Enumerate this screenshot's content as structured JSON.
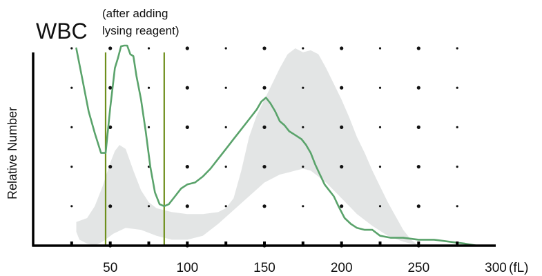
{
  "chart_data": {
    "type": "area",
    "title": "WBC",
    "annotation": [
      "(after adding",
      "lysing reagent)"
    ],
    "xlabel": "",
    "ylabel": "Relative Number",
    "x_unit": "(fL)",
    "xlim": [
      0,
      300
    ],
    "ylim": [
      0,
      100
    ],
    "x_ticks": [
      50,
      100,
      150,
      200,
      250,
      300
    ],
    "grid": "dots",
    "threshold_lines": [
      47,
      85
    ],
    "colors": {
      "curve": "#5aa36b",
      "band": "#e3e5e5",
      "threshold": "#6e8f1c",
      "axis": "#000000",
      "dot": "#111111"
    },
    "band_upper": [
      {
        "x": 28,
        "y": 12
      },
      {
        "x": 35,
        "y": 14
      },
      {
        "x": 40,
        "y": 20
      },
      {
        "x": 45,
        "y": 30
      },
      {
        "x": 50,
        "y": 42
      },
      {
        "x": 53,
        "y": 48
      },
      {
        "x": 56,
        "y": 51
      },
      {
        "x": 60,
        "y": 49
      },
      {
        "x": 65,
        "y": 38
      },
      {
        "x": 70,
        "y": 28
      },
      {
        "x": 75,
        "y": 22
      },
      {
        "x": 80,
        "y": 19
      },
      {
        "x": 90,
        "y": 17
      },
      {
        "x": 100,
        "y": 16
      },
      {
        "x": 110,
        "y": 16
      },
      {
        "x": 120,
        "y": 17
      },
      {
        "x": 125,
        "y": 19
      },
      {
        "x": 130,
        "y": 24
      },
      {
        "x": 135,
        "y": 38
      },
      {
        "x": 140,
        "y": 55
      },
      {
        "x": 145,
        "y": 66
      },
      {
        "x": 150,
        "y": 74
      },
      {
        "x": 155,
        "y": 82
      },
      {
        "x": 160,
        "y": 90
      },
      {
        "x": 165,
        "y": 97
      },
      {
        "x": 170,
        "y": 100
      },
      {
        "x": 175,
        "y": 98
      },
      {
        "x": 180,
        "y": 99
      },
      {
        "x": 185,
        "y": 97
      },
      {
        "x": 190,
        "y": 90
      },
      {
        "x": 195,
        "y": 82
      },
      {
        "x": 200,
        "y": 74
      },
      {
        "x": 205,
        "y": 65
      },
      {
        "x": 210,
        "y": 55
      },
      {
        "x": 215,
        "y": 47
      },
      {
        "x": 220,
        "y": 38
      },
      {
        "x": 225,
        "y": 30
      },
      {
        "x": 230,
        "y": 22
      },
      {
        "x": 235,
        "y": 15
      },
      {
        "x": 240,
        "y": 8
      },
      {
        "x": 245,
        "y": 3
      },
      {
        "x": 250,
        "y": 0
      }
    ],
    "band_lower": [
      {
        "x": 250,
        "y": 0
      },
      {
        "x": 240,
        "y": 2
      },
      {
        "x": 230,
        "y": 5
      },
      {
        "x": 220,
        "y": 10
      },
      {
        "x": 210,
        "y": 16
      },
      {
        "x": 200,
        "y": 24
      },
      {
        "x": 190,
        "y": 32
      },
      {
        "x": 180,
        "y": 38
      },
      {
        "x": 175,
        "y": 39
      },
      {
        "x": 170,
        "y": 38
      },
      {
        "x": 165,
        "y": 37
      },
      {
        "x": 160,
        "y": 36
      },
      {
        "x": 150,
        "y": 32
      },
      {
        "x": 140,
        "y": 25
      },
      {
        "x": 130,
        "y": 18
      },
      {
        "x": 120,
        "y": 11
      },
      {
        "x": 110,
        "y": 5
      },
      {
        "x": 100,
        "y": 3
      },
      {
        "x": 90,
        "y": 3
      },
      {
        "x": 80,
        "y": 5
      },
      {
        "x": 70,
        "y": 8
      },
      {
        "x": 60,
        "y": 9
      },
      {
        "x": 52,
        "y": 6
      },
      {
        "x": 45,
        "y": 2
      },
      {
        "x": 40,
        "y": 0
      },
      {
        "x": 35,
        "y": 1
      },
      {
        "x": 30,
        "y": 3
      },
      {
        "x": 28,
        "y": 7
      }
    ],
    "series": [
      {
        "points": [
          {
            "x": 28,
            "y": 100
          },
          {
            "x": 32,
            "y": 84
          },
          {
            "x": 36,
            "y": 68
          },
          {
            "x": 40,
            "y": 57
          },
          {
            "x": 44,
            "y": 47
          },
          {
            "x": 47,
            "y": 47
          },
          {
            "x": 50,
            "y": 70
          },
          {
            "x": 53,
            "y": 90
          },
          {
            "x": 55,
            "y": 95
          },
          {
            "x": 57,
            "y": 101
          },
          {
            "x": 59,
            "y": 105
          },
          {
            "x": 61,
            "y": 104
          },
          {
            "x": 63,
            "y": 97
          },
          {
            "x": 65,
            "y": 96
          },
          {
            "x": 67,
            "y": 86
          },
          {
            "x": 70,
            "y": 74
          },
          {
            "x": 73,
            "y": 58
          },
          {
            "x": 76,
            "y": 40
          },
          {
            "x": 79,
            "y": 27
          },
          {
            "x": 82,
            "y": 21
          },
          {
            "x": 85,
            "y": 20
          },
          {
            "x": 88,
            "y": 21
          },
          {
            "x": 92,
            "y": 25
          },
          {
            "x": 96,
            "y": 29
          },
          {
            "x": 100,
            "y": 31
          },
          {
            "x": 105,
            "y": 32
          },
          {
            "x": 110,
            "y": 35
          },
          {
            "x": 115,
            "y": 39
          },
          {
            "x": 120,
            "y": 44
          },
          {
            "x": 125,
            "y": 49
          },
          {
            "x": 130,
            "y": 54
          },
          {
            "x": 135,
            "y": 59
          },
          {
            "x": 140,
            "y": 64
          },
          {
            "x": 145,
            "y": 69
          },
          {
            "x": 148,
            "y": 73
          },
          {
            "x": 151,
            "y": 75
          },
          {
            "x": 154,
            "y": 72
          },
          {
            "x": 157,
            "y": 68
          },
          {
            "x": 160,
            "y": 63
          },
          {
            "x": 163,
            "y": 61
          },
          {
            "x": 166,
            "y": 58
          },
          {
            "x": 170,
            "y": 56
          },
          {
            "x": 174,
            "y": 54
          },
          {
            "x": 177,
            "y": 51
          },
          {
            "x": 180,
            "y": 47
          },
          {
            "x": 183,
            "y": 41
          },
          {
            "x": 186,
            "y": 36
          },
          {
            "x": 189,
            "y": 31
          },
          {
            "x": 192,
            "y": 28
          },
          {
            "x": 195,
            "y": 25
          },
          {
            "x": 198,
            "y": 20
          },
          {
            "x": 202,
            "y": 14
          },
          {
            "x": 206,
            "y": 11
          },
          {
            "x": 210,
            "y": 9
          },
          {
            "x": 215,
            "y": 8
          },
          {
            "x": 220,
            "y": 8
          },
          {
            "x": 225,
            "y": 5
          },
          {
            "x": 232,
            "y": 4
          },
          {
            "x": 240,
            "y": 4
          },
          {
            "x": 250,
            "y": 3
          },
          {
            "x": 260,
            "y": 3
          },
          {
            "x": 270,
            "y": 2
          },
          {
            "x": 280,
            "y": 1
          },
          {
            "x": 288,
            "y": 0
          }
        ]
      }
    ]
  }
}
